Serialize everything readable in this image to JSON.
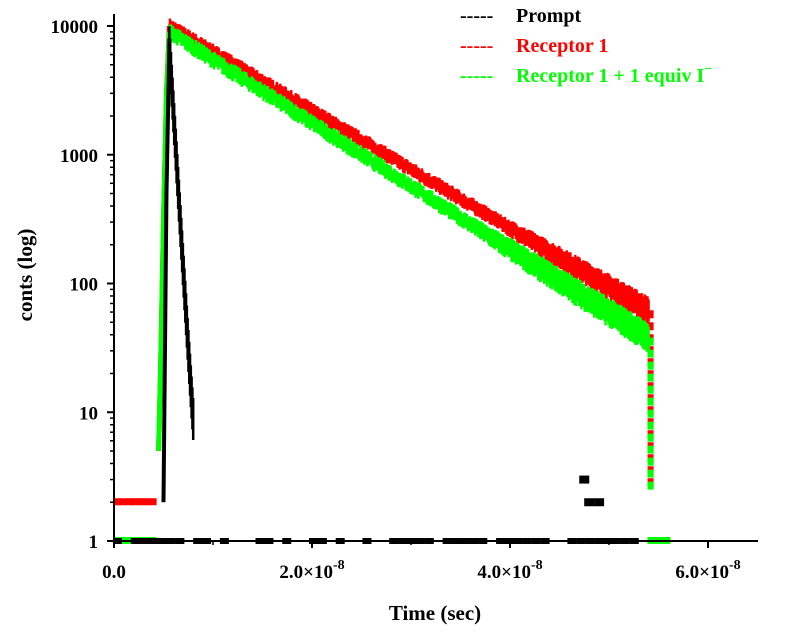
{
  "chart_data": {
    "type": "scatter",
    "title": "",
    "xlabel": "Time (sec)",
    "ylabel": "conts (log)",
    "xlim": [
      0,
      6.5e-08
    ],
    "ylim": [
      1,
      10000
    ],
    "yscale": "log",
    "x_ticks": [
      {
        "value": 0,
        "mantissa": "0.0",
        "base": "",
        "exp": ""
      },
      {
        "value": 2e-08,
        "mantissa": "2.0",
        "base": "×10",
        "exp": "-8"
      },
      {
        "value": 4e-08,
        "mantissa": "4.0",
        "base": "×10",
        "exp": "-8"
      },
      {
        "value": 6e-08,
        "mantissa": "6.0",
        "base": "×10",
        "exp": "-8"
      }
    ],
    "y_ticks": [
      {
        "value": 1,
        "label": "1"
      },
      {
        "value": 10,
        "label": "10"
      },
      {
        "value": 100,
        "label": "100"
      },
      {
        "value": 1000,
        "label": "1000"
      },
      {
        "value": 10000,
        "label": "10000"
      }
    ],
    "legend": {
      "position": "top-right",
      "items": [
        {
          "dash": "-----",
          "label": "Prompt",
          "color": "#000000"
        },
        {
          "dash": "-----",
          "label": "Receptor 1",
          "color": "#ff0000"
        },
        {
          "dash": "-----",
          "label": "Receptor 1 + 1 equiv  I",
          "sup": "−",
          "color": "#00ff00"
        }
      ]
    },
    "series": [
      {
        "name": "Prompt",
        "color": "#000000",
        "peak_time": 5.6e-09,
        "peak_counts": 8000,
        "decay_end_time": 8e-09,
        "baseline": 1,
        "spurious_points": [
          [
            4.75e-08,
            3
          ],
          [
            4.8e-08,
            2
          ],
          [
            4.9e-08,
            2
          ]
        ]
      },
      {
        "name": "Receptor 1",
        "color": "#ff0000",
        "rise_start_time": 4.5e-09,
        "peak_time": 5.6e-09,
        "peak_counts": 10000,
        "end_time": 5.4e-08,
        "end_counts": 62,
        "baseline": 2
      },
      {
        "name": "Receptor 1 + 1 equiv  I−",
        "color": "#00ff00",
        "rise_start_time": 4.5e-09,
        "peak_time": 5.6e-09,
        "peak_counts": 9000,
        "end_time": 5.4e-08,
        "end_counts": 38,
        "baseline": 1
      }
    ]
  }
}
